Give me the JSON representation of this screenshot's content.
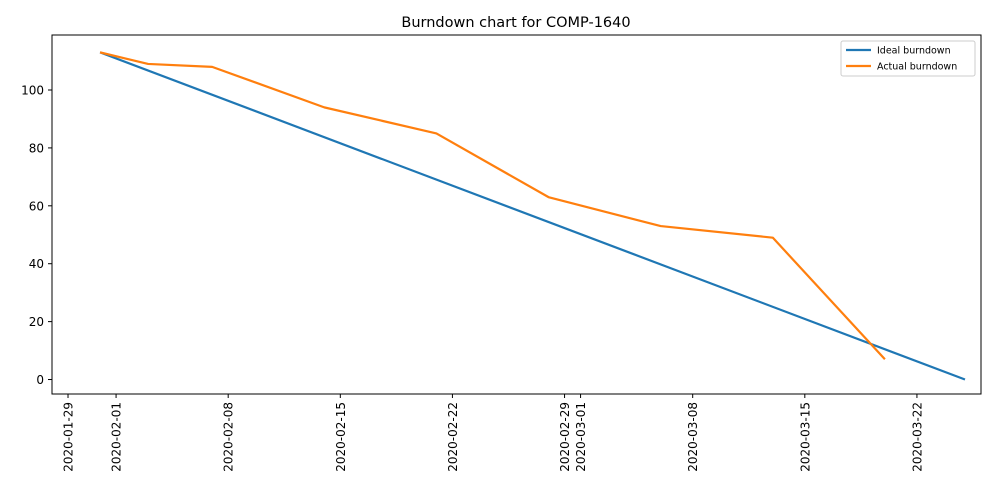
{
  "chart_data": {
    "type": "line",
    "title": "Burndown chart for COMP-1640",
    "xlabel": "",
    "ylabel": "",
    "x_axis": {
      "type": "date",
      "min": "2020-01-28",
      "max": "2020-03-26",
      "ticks": [
        "2020-01-29",
        "2020-02-01",
        "2020-02-08",
        "2020-02-15",
        "2020-02-22",
        "2020-02-29",
        "2020-03-01",
        "2020-03-08",
        "2020-03-15",
        "2020-03-22"
      ]
    },
    "y_axis": {
      "min": -5,
      "max": 119,
      "ticks": [
        0,
        20,
        40,
        60,
        80,
        100
      ]
    },
    "grid": false,
    "legend_position": "top-right",
    "series": [
      {
        "name": "Ideal burndown",
        "color": "#1f77b4",
        "points": [
          {
            "x": "2020-01-31",
            "y": 113
          },
          {
            "x": "2020-03-25",
            "y": 0
          }
        ]
      },
      {
        "name": "Actual burndown",
        "color": "#ff7f0e",
        "points": [
          {
            "x": "2020-01-31",
            "y": 113
          },
          {
            "x": "2020-02-03",
            "y": 109
          },
          {
            "x": "2020-02-07",
            "y": 108
          },
          {
            "x": "2020-02-14",
            "y": 94
          },
          {
            "x": "2020-02-21",
            "y": 85
          },
          {
            "x": "2020-02-28",
            "y": 63
          },
          {
            "x": "2020-03-06",
            "y": 53
          },
          {
            "x": "2020-03-13",
            "y": 49
          },
          {
            "x": "2020-03-20",
            "y": 7
          }
        ]
      }
    ]
  }
}
